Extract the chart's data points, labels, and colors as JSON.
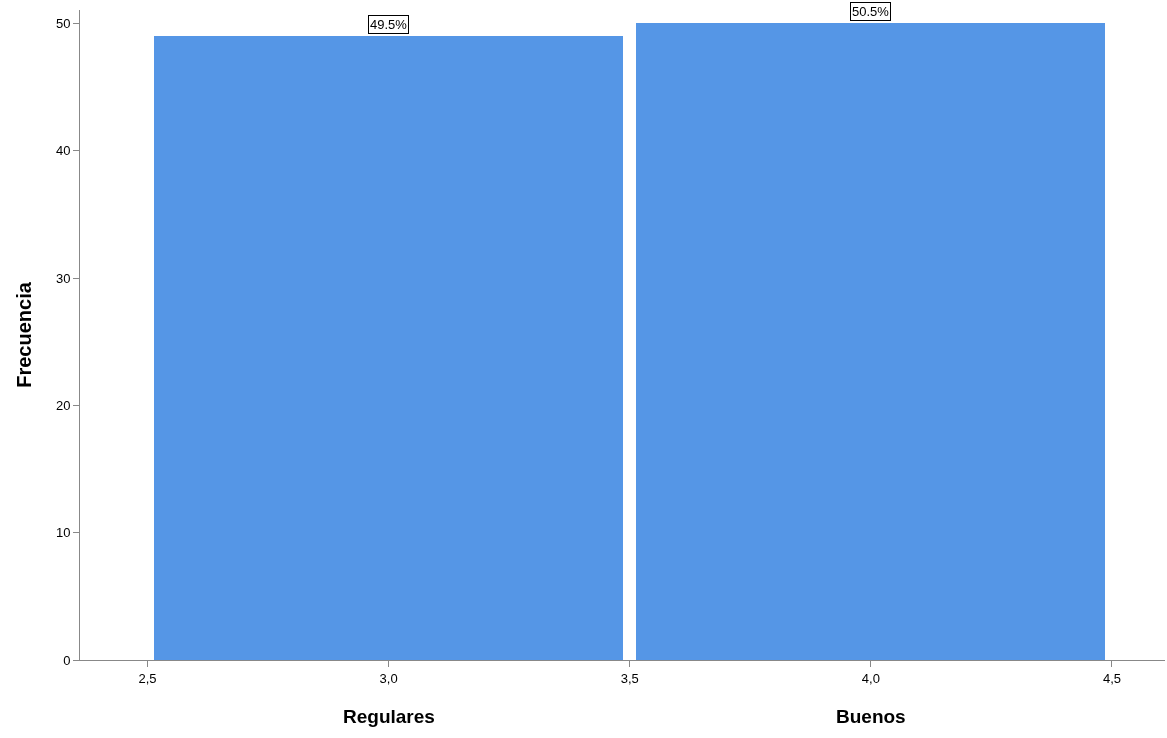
{
  "chart_data": {
    "type": "histogram",
    "ylabel": "Frecuencia",
    "bins": [
      2.5,
      3.5,
      4.5
    ],
    "values": [
      49,
      50
    ],
    "color": "#5596e6",
    "xlim": [
      2.36,
      4.61
    ],
    "xticks": [
      {
        "value": 2.5,
        "label": "2,5"
      },
      {
        "value": 3.0,
        "label": "3,0"
      },
      {
        "value": 3.5,
        "label": "3,5"
      },
      {
        "value": 4.0,
        "label": "4,0"
      },
      {
        "value": 4.5,
        "label": "4,5"
      }
    ],
    "ylim": [
      0,
      51.06
    ],
    "yticks": [
      0,
      10,
      20,
      30,
      40,
      50
    ],
    "annotations": [
      {
        "text": "49.5%",
        "x": 3.0,
        "y": 49
      },
      {
        "text": "50.5%",
        "x": 4.0,
        "y": 50
      },
      "Regulares",
      "Buenos"
    ]
  }
}
